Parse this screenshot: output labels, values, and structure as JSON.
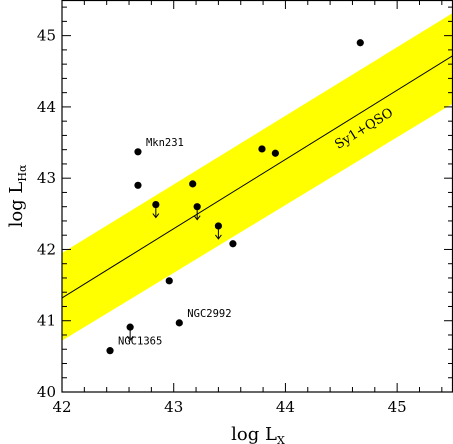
{
  "chart_data": {
    "type": "scatter",
    "xlabel": {
      "base": "log L",
      "sub": "X"
    },
    "ylabel": {
      "base": "log L",
      "sub": "Hα"
    },
    "xlim": [
      42,
      45.5
    ],
    "ylim": [
      40,
      45.5
    ],
    "xticks": [
      "42",
      "43",
      "44",
      "45"
    ],
    "yticks": [
      "40",
      "41",
      "42",
      "43",
      "44",
      "45"
    ],
    "colors": {
      "band": "#ffff00",
      "points": "#000000",
      "frame": "#000000"
    },
    "grid": false,
    "fit_line": {
      "x": [
        42,
        45.5
      ],
      "y": [
        41.32,
        44.72
      ]
    },
    "band": {
      "x": [
        42,
        45.5
      ],
      "upper": [
        41.95,
        45.32
      ],
      "lower": [
        40.72,
        44.05
      ],
      "label": "Sy1+QSO"
    },
    "points": [
      {
        "x": 42.43,
        "y": 40.58,
        "upper_limit": false,
        "label": "NGC1365"
      },
      {
        "x": 42.61,
        "y": 40.91,
        "upper_limit": true,
        "label": ""
      },
      {
        "x": 43.05,
        "y": 40.97,
        "upper_limit": false,
        "label": "NGC2992"
      },
      {
        "x": 42.96,
        "y": 41.56,
        "upper_limit": false,
        "label": ""
      },
      {
        "x": 42.68,
        "y": 42.9,
        "upper_limit": false,
        "label": ""
      },
      {
        "x": 42.68,
        "y": 43.37,
        "upper_limit": false,
        "label": "Mkn231"
      },
      {
        "x": 42.84,
        "y": 42.63,
        "upper_limit": true,
        "label": ""
      },
      {
        "x": 43.17,
        "y": 42.92,
        "upper_limit": false,
        "label": ""
      },
      {
        "x": 43.21,
        "y": 42.6,
        "upper_limit": true,
        "label": ""
      },
      {
        "x": 43.4,
        "y": 42.33,
        "upper_limit": true,
        "label": ""
      },
      {
        "x": 43.53,
        "y": 42.08,
        "upper_limit": false,
        "label": ""
      },
      {
        "x": 43.79,
        "y": 43.41,
        "upper_limit": false,
        "label": ""
      },
      {
        "x": 43.91,
        "y": 43.35,
        "upper_limit": false,
        "label": ""
      },
      {
        "x": 44.67,
        "y": 44.9,
        "upper_limit": false,
        "label": ""
      }
    ]
  }
}
